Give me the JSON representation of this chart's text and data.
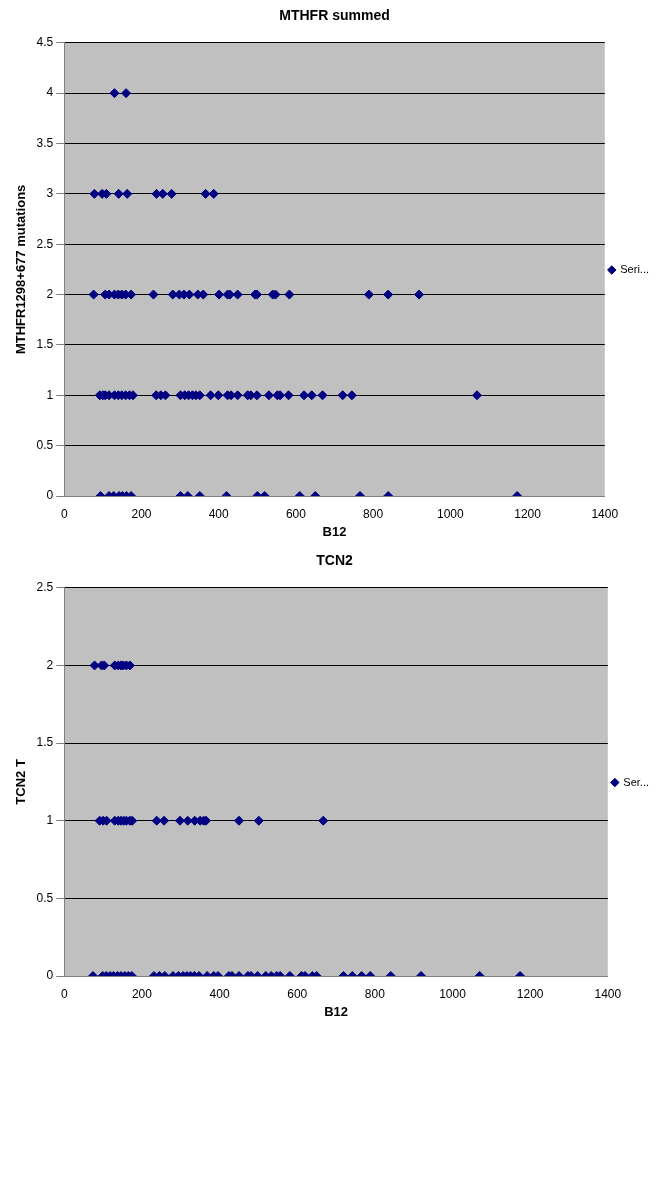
{
  "chart_data": [
    {
      "type": "scatter",
      "title": "MTHFR summed",
      "xlabel": "B12",
      "ylabel": "MTHFR1298+677 mutations",
      "xlim": [
        0,
        1400
      ],
      "xticks": [
        0,
        200,
        400,
        600,
        800,
        1000,
        1200,
        1400
      ],
      "ylim": [
        0,
        4.5
      ],
      "yticks": [
        0,
        0.5,
        1,
        1.5,
        2,
        2.5,
        3,
        3.5,
        4,
        4.5
      ],
      "grid": "y",
      "legend": "right",
      "marker": "diamond",
      "series": [
        {
          "name": "Seri...",
          "color": "#000080",
          "x": [
            130,
            160,
            78,
            98,
            109,
            141,
            163,
            239,
            255,
            278,
            366,
            387,
            76,
            106,
            116,
            130,
            140,
            149,
            159,
            173,
            231,
            281,
            298,
            310,
            324,
            346,
            360,
            401,
            423,
            429,
            449,
            494,
            499,
            540,
            547,
            583,
            789,
            839,
            919,
            92,
            100,
            106,
            116,
            130,
            140,
            149,
            159,
            169,
            178,
            238,
            250,
            262,
            301,
            312,
            322,
            332,
            341,
            351,
            379,
            399,
            423,
            432,
            449,
            475,
            483,
            499,
            530,
            552,
            559,
            581,
            621,
            641,
            669,
            721,
            745,
            1069,
            94,
            116,
            128,
            142,
            151,
            161,
            173,
            301,
            320,
            351,
            420,
            500,
            519,
            610,
            650,
            766,
            839,
            1173
          ],
          "values": [
            4,
            4,
            3,
            3,
            3,
            3,
            3,
            3,
            3,
            3,
            3,
            3,
            2,
            2,
            2,
            2,
            2,
            2,
            2,
            2,
            2,
            2,
            2,
            2,
            2,
            2,
            2,
            2,
            2,
            2,
            2,
            2,
            2,
            2,
            2,
            2,
            2,
            2,
            2,
            1,
            1,
            1,
            1,
            1,
            1,
            1,
            1,
            1,
            1,
            1,
            1,
            1,
            1,
            1,
            1,
            1,
            1,
            1,
            1,
            1,
            1,
            1,
            1,
            1,
            1,
            1,
            1,
            1,
            1,
            1,
            1,
            1,
            1,
            1,
            1,
            1,
            0,
            0,
            0,
            0,
            0,
            0,
            0,
            0,
            0,
            0,
            0,
            0,
            0,
            0,
            0,
            0,
            0,
            0
          ]
        }
      ]
    },
    {
      "type": "scatter",
      "title": "TCN2",
      "xlabel": "B12",
      "ylabel": "TCN2 T",
      "xlim": [
        0,
        1400
      ],
      "xticks": [
        0,
        200,
        400,
        600,
        800,
        1000,
        1200,
        1400
      ],
      "ylim": [
        0,
        2.5
      ],
      "yticks": [
        0,
        0.5,
        1,
        1.5,
        2,
        2.5
      ],
      "grid": "y",
      "legend": "right",
      "marker": "diamond",
      "series": [
        {
          "name": "Ser...",
          "color": "#000080",
          "x": [
            78,
            96,
            103,
            130,
            139,
            146,
            152,
            160,
            169,
            91,
            100,
            109,
            130,
            139,
            146,
            153,
            160,
            169,
            175,
            238,
            257,
            298,
            318,
            336,
            350,
            359,
            365,
            450,
            501,
            667,
            74,
            99,
            108,
            118,
            127,
            137,
            146,
            156,
            165,
            174,
            231,
            245,
            259,
            280,
            294,
            306,
            316,
            325,
            335,
            347,
            368,
            385,
            396,
            424,
            432,
            450,
            473,
            481,
            498,
            519,
            533,
            547,
            556,
            581,
            611,
            620,
            639,
            650,
            719,
            742,
            766,
            788,
            841,
            919,
            1070,
            1174
          ],
          "values": [
            2,
            2,
            2,
            2,
            2,
            2,
            2,
            2,
            2,
            1,
            1,
            1,
            1,
            1,
            1,
            1,
            1,
            1,
            1,
            1,
            1,
            1,
            1,
            1,
            1,
            1,
            1,
            1,
            1,
            1,
            0,
            0,
            0,
            0,
            0,
            0,
            0,
            0,
            0,
            0,
            0,
            0,
            0,
            0,
            0,
            0,
            0,
            0,
            0,
            0,
            0,
            0,
            0,
            0,
            0,
            0,
            0,
            0,
            0,
            0,
            0,
            0,
            0,
            0,
            0,
            0,
            0,
            0,
            0,
            0,
            0,
            0,
            0,
            0,
            0,
            0
          ]
        }
      ]
    }
  ]
}
